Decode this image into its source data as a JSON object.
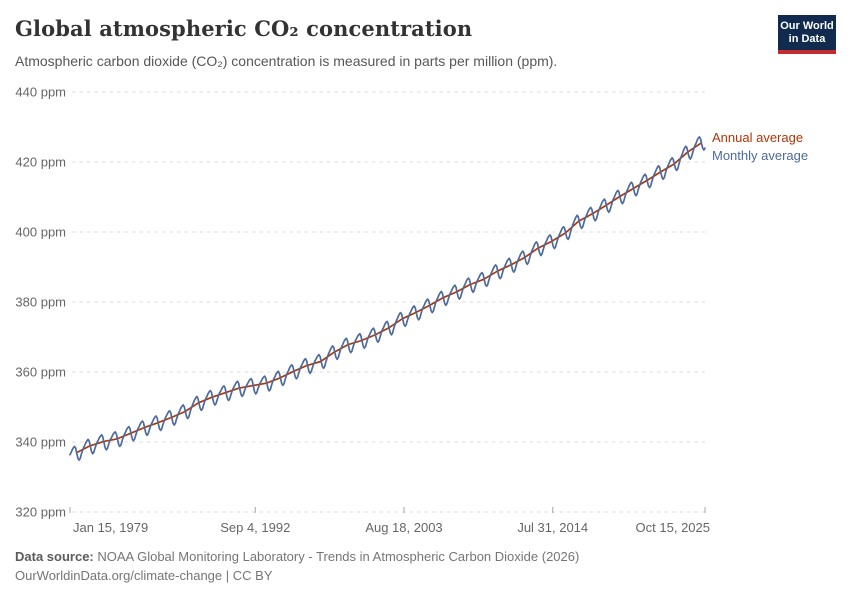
{
  "page": {
    "title": "Global atmospheric CO₂ concentration",
    "subtitle": "Atmospheric carbon dioxide (CO₂) concentration is measured in parts per million (ppm)."
  },
  "logo": {
    "line1": "Our World",
    "line2": "in Data",
    "bg_color": "#112b4e",
    "bar_color": "#c32b31"
  },
  "chart_data": {
    "type": "line",
    "title": "Global atmospheric CO₂ concentration",
    "unit": "ppm",
    "xlabel": "",
    "ylabel": "ppm",
    "xlim": [
      1979.04,
      2025.79
    ],
    "ylim": [
      320,
      440
    ],
    "grid": "dashed-horizontal",
    "legend_position": "end-of-line-labels",
    "y_ticks": [
      {
        "label": "320 ppm",
        "value": 320
      },
      {
        "label": "340 ppm",
        "value": 340
      },
      {
        "label": "360 ppm",
        "value": 360
      },
      {
        "label": "380 ppm",
        "value": 380
      },
      {
        "label": "400 ppm",
        "value": 400
      },
      {
        "label": "420 ppm",
        "value": 420
      },
      {
        "label": "440 ppm",
        "value": 440
      }
    ],
    "x_ticks": [
      {
        "label": "Jan 15, 1979",
        "t": 1979.04,
        "anchor": "start"
      },
      {
        "label": "Sep 4, 1992",
        "t": 1992.68,
        "anchor": "middle"
      },
      {
        "label": "Aug 18, 2003",
        "t": 2003.63,
        "anchor": "middle"
      },
      {
        "label": "Jul 31, 2014",
        "t": 2014.58,
        "anchor": "middle"
      },
      {
        "label": "Oct 15, 2025",
        "t": 2025.79,
        "anchor": "end"
      }
    ],
    "series": [
      {
        "name": "Annual average",
        "color": "#b13507",
        "start_year": 1979,
        "values": [
          336.9,
          338.9,
          340.1,
          340.9,
          342.5,
          344.1,
          345.5,
          347.0,
          348.7,
          351.2,
          352.8,
          354.1,
          355.4,
          356.1,
          356.8,
          358.3,
          360.2,
          361.9,
          363.0,
          365.7,
          367.8,
          369.0,
          370.6,
          372.6,
          375.2,
          377.0,
          379.0,
          381.2,
          382.9,
          385.0,
          386.5,
          388.8,
          390.6,
          392.7,
          395.4,
          397.3,
          399.7,
          403.1,
          405.2,
          407.6,
          410.1,
          412.4,
          414.7,
          417.1,
          419.4,
          422.8,
          425.4
        ]
      },
      {
        "name": "Monthly average",
        "color": "#4c6a9c",
        "start": "Jan 1979",
        "end": "Oct 2025",
        "seasonal_offsets_ppm": [
          0.4,
          0.9,
          1.5,
          1.9,
          2.1,
          1.4,
          -0.3,
          -1.8,
          -2.5,
          -2.2,
          -1.2,
          -0.3
        ]
      }
    ]
  },
  "footer": {
    "source_label": "Data source:",
    "source_text": " NOAA Global Monitoring Laboratory - Trends in Atmospheric Carbon Dioxide (2026)",
    "link": "OurWorldinData.org/climate-change",
    "separator": "|",
    "license": "CC BY"
  }
}
